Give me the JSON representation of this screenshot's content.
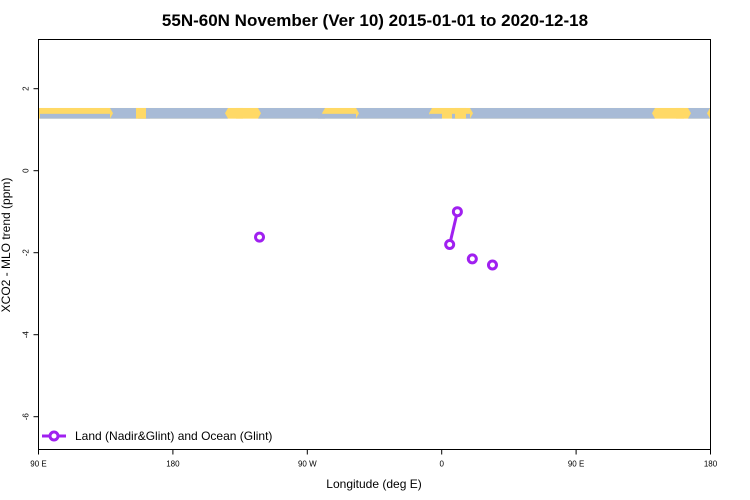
{
  "chart_data": {
    "type": "line",
    "title": "55N-60N November (Ver 10)   2015-01-01 to 2020-12-18",
    "xlabel": "Longitude (deg E)",
    "ylabel": "XCO2 - MLO trend (ppm)",
    "xlim": [
      -90,
      180
    ],
    "ylim": [
      -6.8,
      3.2
    ],
    "x_ticks": [
      {
        "value": -90,
        "label": "90 E"
      },
      {
        "value": -36,
        "label": "180"
      },
      {
        "value": 18,
        "label": "90 W"
      },
      {
        "value": 72,
        "label": "0"
      },
      {
        "value": 126,
        "label": "90 E"
      },
      {
        "value": 180,
        "label": "180"
      }
    ],
    "y_ticks": [
      {
        "value": 2,
        "label": "2"
      },
      {
        "value": 0,
        "label": "0"
      },
      {
        "value": -2,
        "label": "-2"
      },
      {
        "value": -4,
        "label": "-4"
      },
      {
        "value": -6,
        "label": "-6"
      }
    ],
    "series": [
      {
        "name": "Land (Nadir&Glint) and Ocean (Glint)",
        "color": "#a020f0",
        "segments": [
          [
            {
              "x": -1.2,
              "y": -1.62
            }
          ],
          [
            {
              "x": 75.2,
              "y": -1.8
            },
            {
              "x": 78.3,
              "y": -1.0
            }
          ],
          [
            {
              "x": 84.3,
              "y": -2.15
            }
          ],
          [
            {
              "x": 92.4,
              "y": -2.3
            }
          ]
        ]
      }
    ],
    "map_strip": {
      "y_top": 1.53,
      "y_bottom": 1.27,
      "land_color": "#ffd966",
      "ocean_color": "#a8bbd6"
    },
    "legend": {
      "position": "bottom-left"
    },
    "grid": false
  }
}
